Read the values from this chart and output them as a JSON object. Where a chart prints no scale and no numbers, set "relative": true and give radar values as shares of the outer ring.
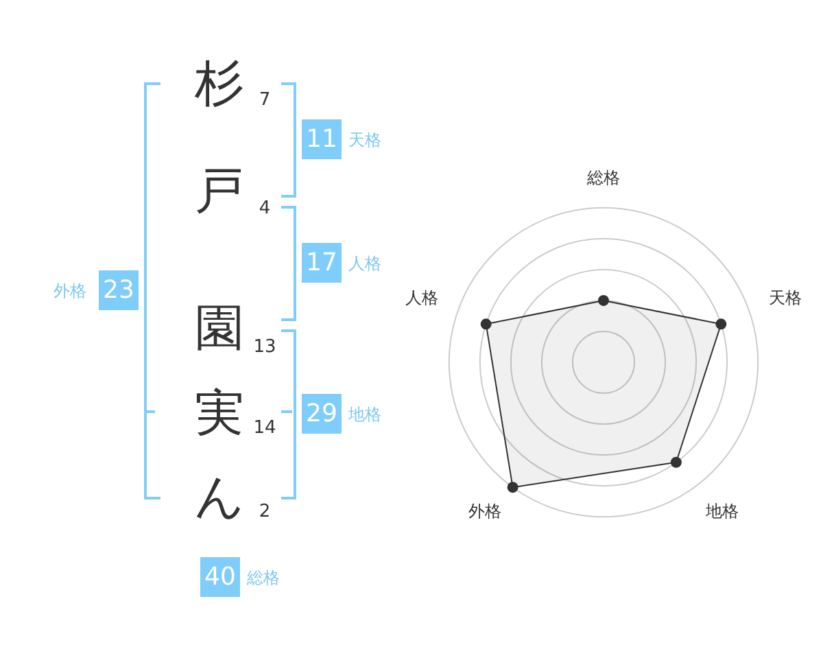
{
  "chart_data": [
    {
      "type": "other",
      "annotations": [
        "杉",
        "戸",
        "園",
        "実",
        "ん",
        "7",
        "4",
        "13",
        "14",
        "2",
        "11",
        "天格",
        "17",
        "人格",
        "29",
        "地格",
        "23",
        "外格",
        "40",
        "総格"
      ]
    },
    {
      "type": "radar",
      "categories": [
        "総格",
        "天格",
        "地格",
        "外格",
        "人格"
      ],
      "relative": true,
      "grid": true,
      "legend": false,
      "marker": "circle",
      "series": [
        {
          "color": "#333333",
          "values": [
            0.4,
            0.8,
            0.8,
            1,
            0.8
          ]
        }
      ]
    }
  ]
}
